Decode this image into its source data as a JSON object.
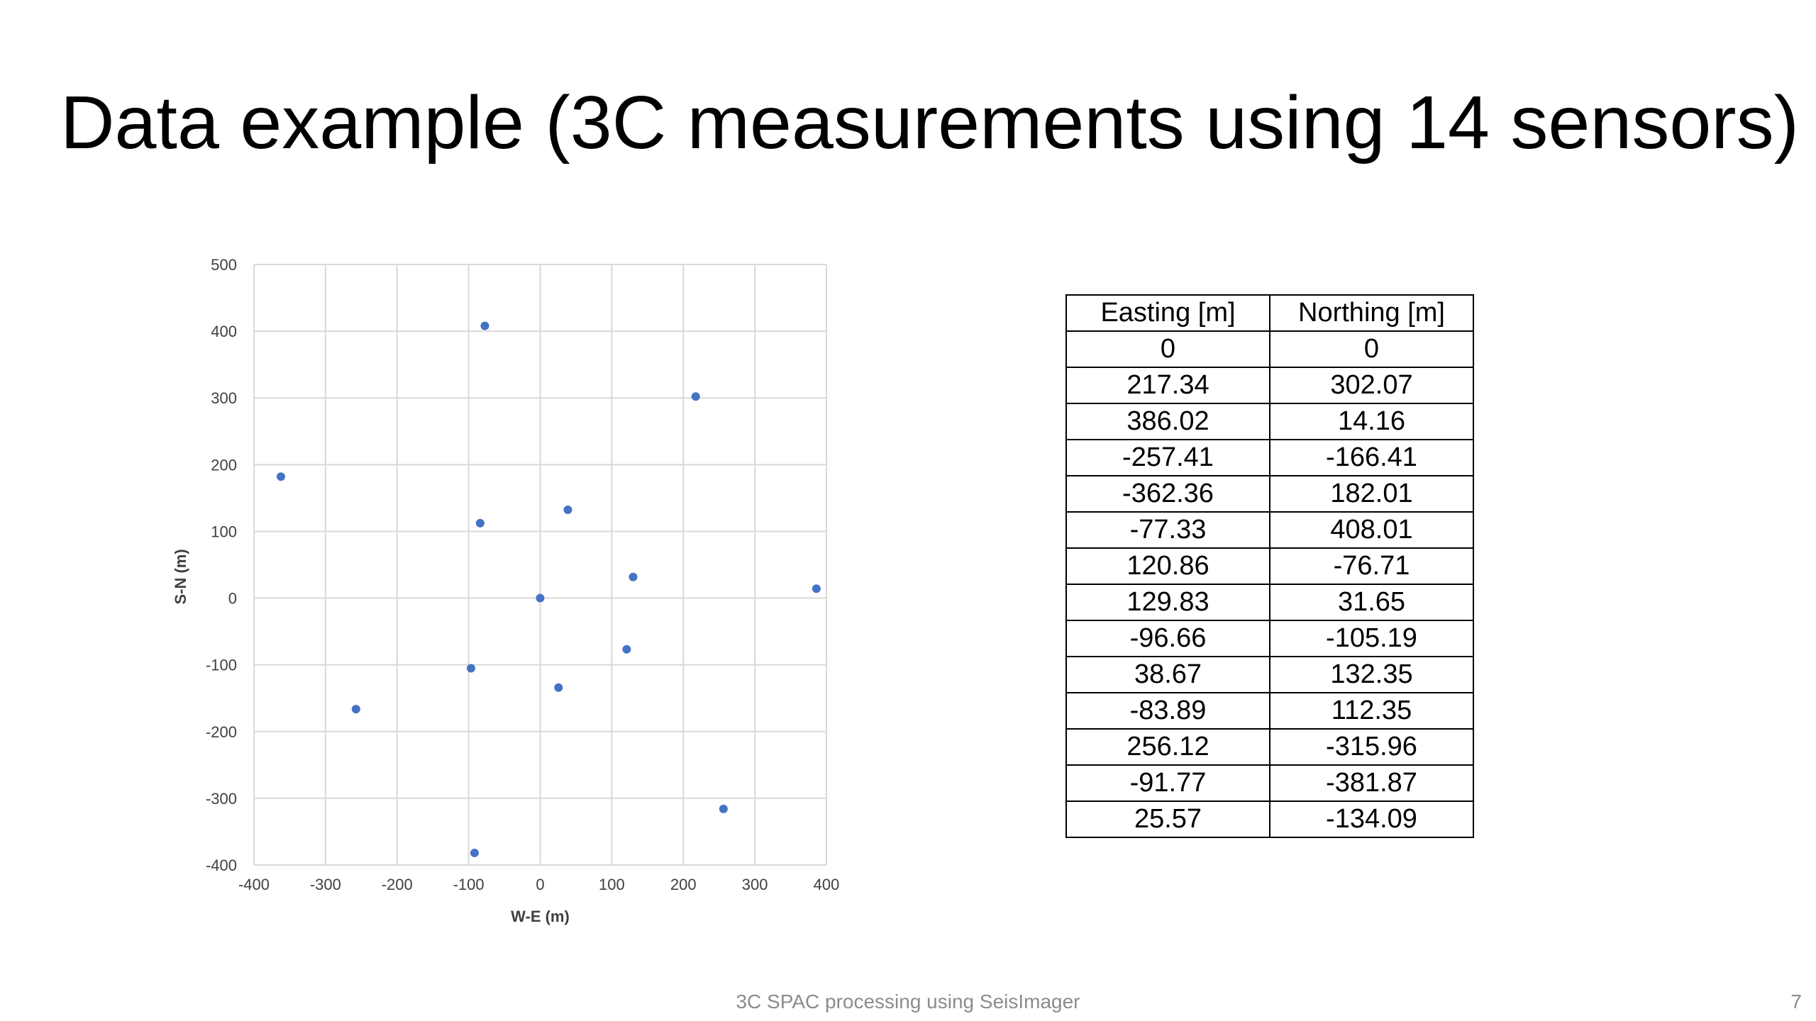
{
  "slide": {
    "title": "Data example (3C measurements using 14 sensors)",
    "footer": "3C SPAC processing using SeisImager",
    "page_number": "7"
  },
  "chart_data": {
    "type": "scatter",
    "xlabel": "W-E (m)",
    "ylabel": "S-N (m)",
    "xlim": [
      -400,
      400
    ],
    "ylim": [
      -400,
      500
    ],
    "xticks": [
      -400,
      -300,
      -200,
      -100,
      0,
      100,
      200,
      300,
      400
    ],
    "yticks": [
      -400,
      -300,
      -200,
      -100,
      0,
      100,
      200,
      300,
      400,
      500
    ],
    "grid": true,
    "marker_color": "#4472c4",
    "x": [
      0,
      217.34,
      386.02,
      -257.41,
      -362.36,
      -77.33,
      120.86,
      129.83,
      -96.66,
      38.67,
      -83.89,
      256.12,
      -91.77,
      25.57
    ],
    "y": [
      0,
      302.07,
      14.16,
      -166.41,
      182.01,
      408.01,
      -76.71,
      31.65,
      -105.19,
      132.35,
      112.35,
      -315.96,
      -381.87,
      -134.09
    ]
  },
  "table": {
    "headers": [
      "Easting [m]",
      "Northing [m]"
    ],
    "rows": [
      [
        "0",
        "0"
      ],
      [
        "217.34",
        "302.07"
      ],
      [
        "386.02",
        "14.16"
      ],
      [
        "-257.41",
        "-166.41"
      ],
      [
        "-362.36",
        "182.01"
      ],
      [
        "-77.33",
        "408.01"
      ],
      [
        "120.86",
        "-76.71"
      ],
      [
        "129.83",
        "31.65"
      ],
      [
        "-96.66",
        "-105.19"
      ],
      [
        "38.67",
        "132.35"
      ],
      [
        "-83.89",
        "112.35"
      ],
      [
        "256.12",
        "-315.96"
      ],
      [
        "-91.77",
        "-381.87"
      ],
      [
        "25.57",
        "-134.09"
      ]
    ]
  }
}
